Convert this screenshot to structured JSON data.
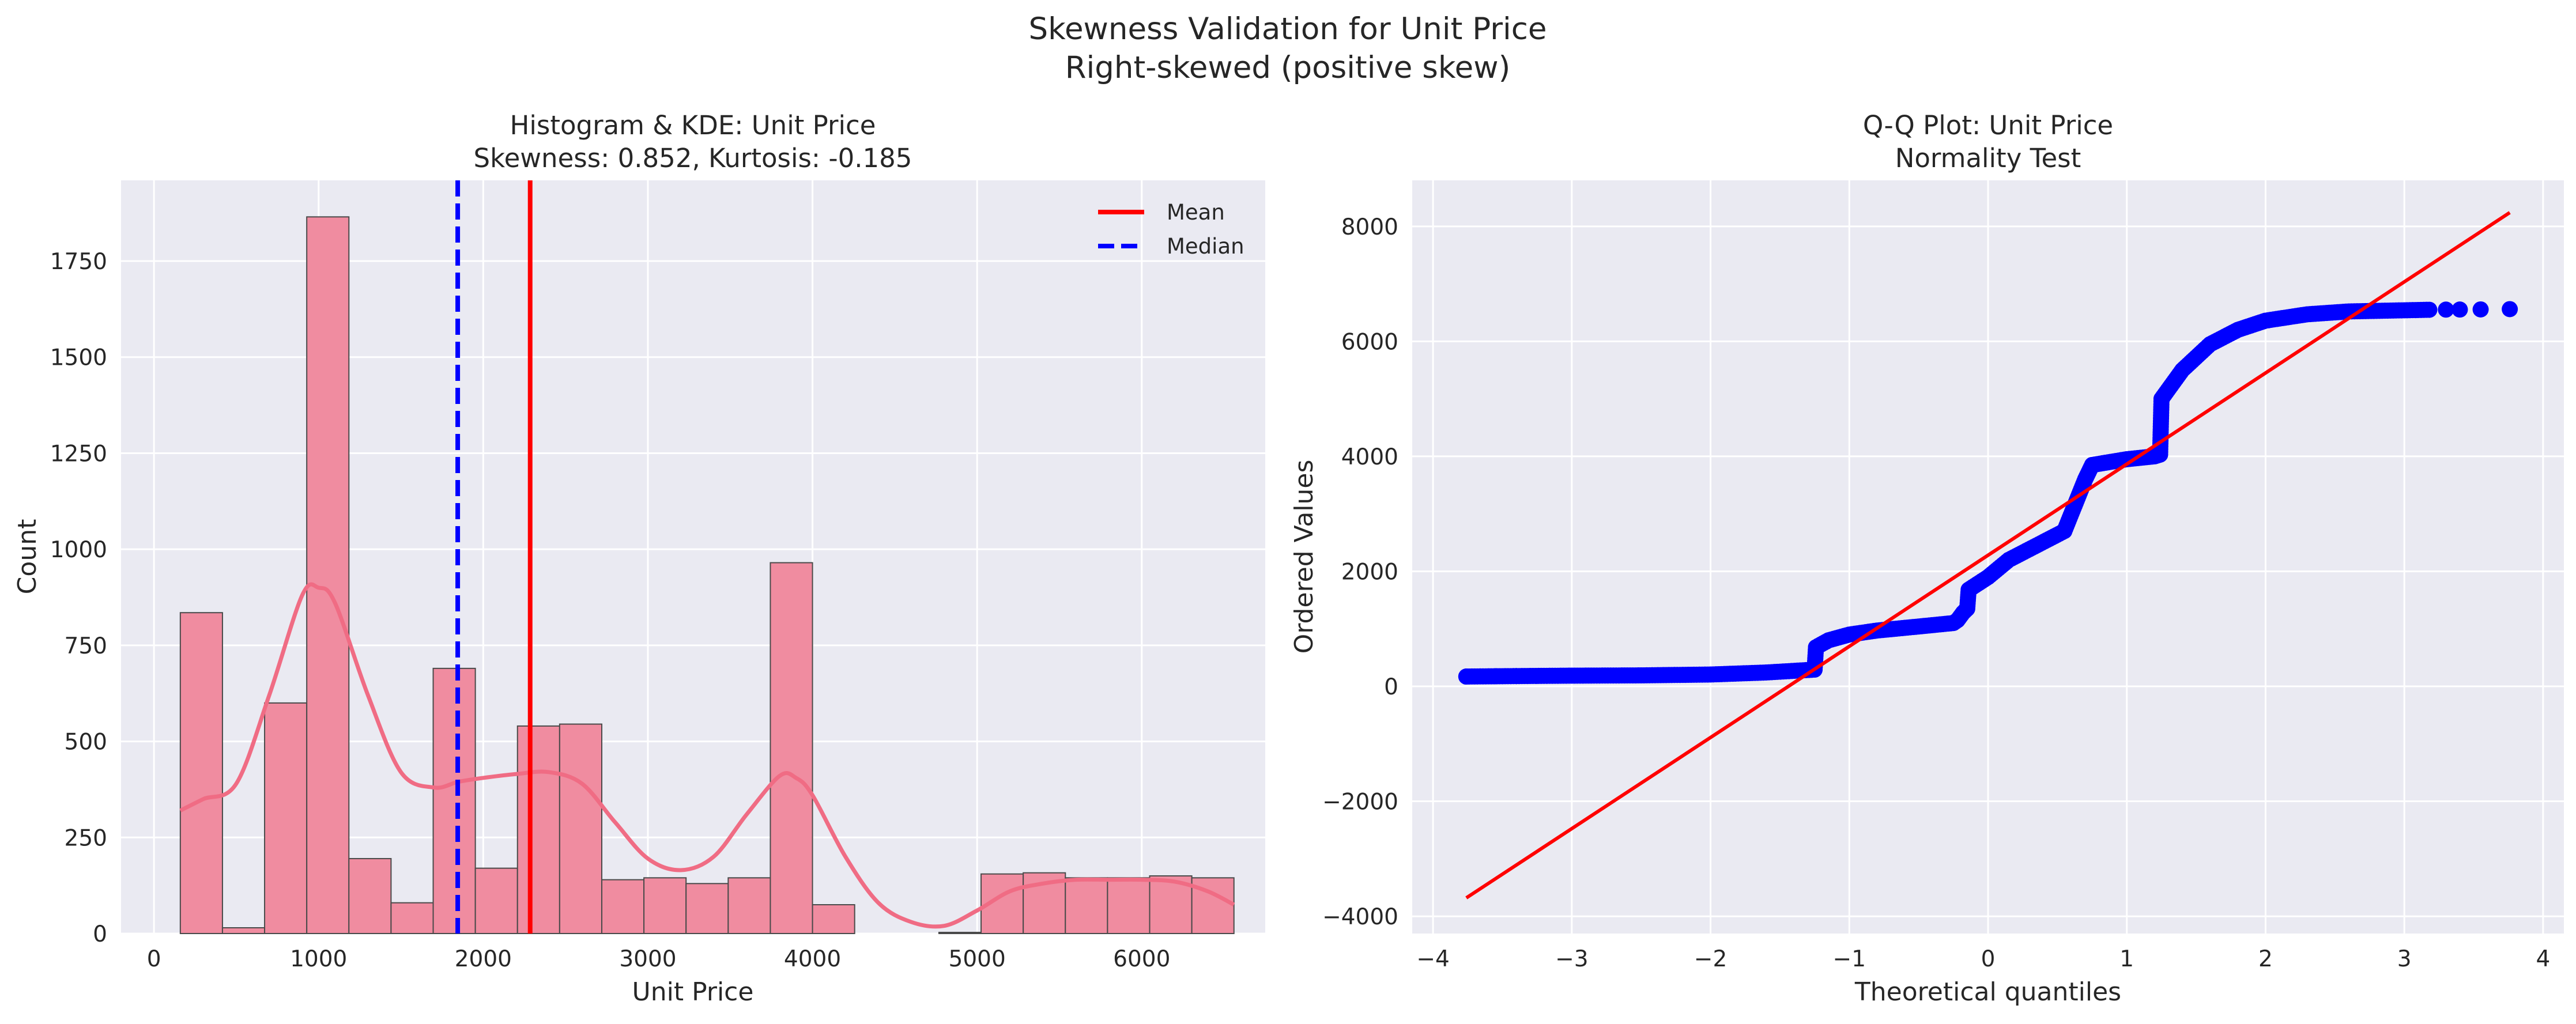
{
  "figure": {
    "title_line1": "Skewness Validation for Unit Price",
    "title_line2": "Right-skewed (positive skew)"
  },
  "chart_data": [
    {
      "type": "bar",
      "subtype": "histogram",
      "title_line1": "Histogram & KDE: Unit Price",
      "title_line2": "Skewness: 0.852, Kurtosis: -0.185",
      "xlabel": "Unit Price",
      "ylabel": "Count",
      "xlim": [
        -200,
        6750
      ],
      "ylim": [
        0,
        1960
      ],
      "xticks": [
        0,
        1000,
        2000,
        3000,
        4000,
        5000,
        6000
      ],
      "yticks": [
        0,
        250,
        500,
        750,
        1000,
        1250,
        1500,
        1750
      ],
      "grid": true,
      "legend_position": "top-right",
      "bar_color": "#f08ca0",
      "kde_color": "#f06c84",
      "bin_edges": [
        160,
        416,
        672,
        928,
        1184,
        1440,
        1696,
        1952,
        2208,
        2464,
        2720,
        2976,
        3232,
        3488,
        3744,
        4000,
        4256,
        4512,
        4768,
        5024,
        5280,
        5536,
        5792,
        6048,
        6304,
        6560
      ],
      "counts": [
        835,
        15,
        600,
        1865,
        195,
        80,
        690,
        170,
        540,
        545,
        140,
        145,
        130,
        145,
        965,
        75,
        0,
        0,
        3,
        155,
        158,
        145,
        145,
        150,
        145
      ],
      "kde": {
        "x": [
          160,
          300,
          500,
          700,
          900,
          1000,
          1100,
          1300,
          1500,
          1700,
          1850,
          2000,
          2200,
          2400,
          2600,
          2800,
          3000,
          3200,
          3400,
          3600,
          3800,
          3900,
          4000,
          4200,
          4400,
          4600,
          4800,
          5000,
          5200,
          5400,
          5600,
          5800,
          6000,
          6200,
          6400,
          6560
        ],
        "y": [
          320,
          350,
          390,
          620,
          880,
          900,
          860,
          620,
          420,
          380,
          395,
          405,
          415,
          420,
          390,
          290,
          195,
          165,
          200,
          310,
          410,
          405,
          360,
          200,
          80,
          30,
          20,
          60,
          110,
          130,
          140,
          140,
          140,
          135,
          110,
          75
        ]
      },
      "lines": [
        {
          "name": "Mean",
          "x": 2285,
          "color": "#ff0000",
          "style": "solid"
        },
        {
          "name": "Median",
          "x": 1845,
          "color": "#0000ff",
          "style": "dashed"
        }
      ]
    },
    {
      "type": "scatter",
      "subtype": "qq-plot",
      "title_line1": "Q-Q Plot: Unit Price",
      "title_line2": "Normality Test",
      "xlabel": "Theoretical quantiles",
      "ylabel": "Ordered Values",
      "xlim": [
        -4.15,
        4.15
      ],
      "ylim": [
        -4300,
        8800
      ],
      "xticks": [
        -4,
        -3,
        -2,
        -1,
        0,
        1,
        2,
        3,
        4
      ],
      "yticks": [
        -4000,
        -2000,
        0,
        2000,
        4000,
        6000,
        8000
      ],
      "grid": true,
      "point_color": "#0000ff",
      "fit_line": {
        "color": "#ff0000",
        "x": [
          -3.76,
          3.76
        ],
        "y": [
          -3680,
          8240
        ]
      },
      "quantile_curve": {
        "x": [
          -3.76,
          -3.3,
          -3.0,
          -2.5,
          -2.0,
          -1.6,
          -1.25,
          -1.24,
          -1.15,
          -1.0,
          -0.8,
          -0.5,
          -0.25,
          -0.22,
          -0.18,
          -0.15,
          -0.14,
          0.0,
          0.15,
          0.35,
          0.55,
          0.7,
          0.75,
          1.0,
          1.2,
          1.24,
          1.25,
          1.4,
          1.6,
          1.8,
          2.0,
          2.3,
          2.6,
          3.0,
          3.2
        ],
        "y": [
          170,
          180,
          185,
          190,
          205,
          240,
          290,
          680,
          800,
          900,
          970,
          1040,
          1100,
          1150,
          1280,
          1350,
          1680,
          1900,
          2200,
          2450,
          2700,
          3600,
          3850,
          3950,
          4000,
          4030,
          5000,
          5500,
          5950,
          6200,
          6360,
          6470,
          6520,
          6540,
          6550
        ]
      },
      "extreme_points": [
        {
          "x": -3.76,
          "y": 170
        },
        {
          "x": -3.55,
          "y": 175
        },
        {
          "x": -3.4,
          "y": 178
        },
        {
          "x": 3.3,
          "y": 6552
        },
        {
          "x": 3.4,
          "y": 6553
        },
        {
          "x": 3.55,
          "y": 6555
        },
        {
          "x": 3.76,
          "y": 6560
        }
      ]
    }
  ],
  "legend": {
    "mean_label": "Mean",
    "median_label": "Median"
  },
  "colors": {
    "axes_bg": "#eaeaf2",
    "grid": "#ffffff",
    "text": "#262626"
  }
}
